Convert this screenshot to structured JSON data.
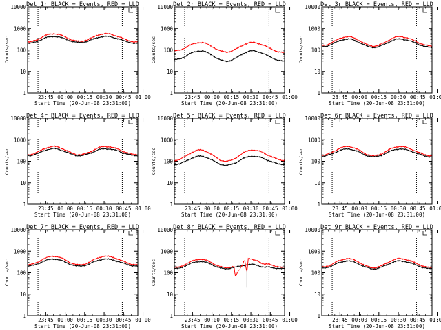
{
  "chart_data": [
    {
      "type": "line",
      "panel": 1,
      "title": "Det 1r BLACK = Events, RED = LLD",
      "xlabel": "Start Time (20-Jun-08 23:31:00)",
      "ylabel": "Counts/sec",
      "ylim": [
        1,
        10000
      ],
      "yscale": "log",
      "yticks": [
        "1",
        "10",
        "100",
        "1000",
        "10000"
      ],
      "xticks": [
        "23:45",
        "00:00",
        "00:15",
        "00:30",
        "00:45",
        "01:00"
      ],
      "vlines": [
        "23:39",
        "00:44"
      ],
      "series": [
        {
          "color": "#000000",
          "keys": [
            [
              0,
              200
            ],
            [
              20,
              420
            ],
            [
              40,
              220
            ],
            [
              60,
              420
            ],
            [
              85,
              200
            ]
          ]
        },
        {
          "color": "#ff0000",
          "keys": [
            [
              0,
              230
            ],
            [
              20,
              560
            ],
            [
              40,
              250
            ],
            [
              60,
              560
            ],
            [
              85,
              230
            ]
          ]
        }
      ]
    },
    {
      "type": "line",
      "panel": 2,
      "title": "Det 2r BLACK = Events, RED = LLD",
      "xlabel": "Start Time (20-Jun-08 23:31:00)",
      "ylabel": "Counts/sec",
      "ylim": [
        1,
        10000
      ],
      "yscale": "log",
      "yticks": [
        "1",
        "10",
        "100",
        "1000",
        "10000"
      ],
      "xticks": [
        "23:45",
        "00:00",
        "00:15",
        "00:30",
        "00:45",
        "01:00"
      ],
      "vlines": [
        "23:39",
        "00:44"
      ],
      "series": [
        {
          "color": "#000000",
          "keys": [
            [
              0,
              35
            ],
            [
              20,
              90
            ],
            [
              40,
              30
            ],
            [
              60,
              90
            ],
            [
              85,
              30
            ]
          ]
        },
        {
          "color": "#ff0000",
          "keys": [
            [
              0,
              90
            ],
            [
              20,
              220
            ],
            [
              40,
              80
            ],
            [
              60,
              220
            ],
            [
              85,
              75
            ]
          ]
        }
      ]
    },
    {
      "type": "line",
      "panel": 3,
      "title": "Det 3r BLACK = Events, RED = LLD",
      "xlabel": "Start Time (20-Jun-08 23:31:00)",
      "ylabel": "Counts/sec",
      "ylim": [
        1,
        10000
      ],
      "yscale": "log",
      "yticks": [
        "1",
        "10",
        "100",
        "1000",
        "10000"
      ],
      "xticks": [
        "23:45",
        "00:00",
        "00:15",
        "00:30",
        "00:45",
        "01:00"
      ],
      "vlines": [
        "23:39",
        "00:44"
      ],
      "series": [
        {
          "color": "#000000",
          "keys": [
            [
              0,
              140
            ],
            [
              20,
              320
            ],
            [
              40,
              130
            ],
            [
              60,
              320
            ],
            [
              85,
              130
            ]
          ]
        },
        {
          "color": "#ff0000",
          "keys": [
            [
              0,
              160
            ],
            [
              20,
              410
            ],
            [
              40,
              150
            ],
            [
              60,
              410
            ],
            [
              85,
              150
            ]
          ]
        }
      ]
    },
    {
      "type": "line",
      "panel": 4,
      "title": "Det 4r BLACK = Events, RED = LLD",
      "xlabel": "Start Time (20-Jun-08 23:31:00)",
      "ylabel": "Counts/sec",
      "ylim": [
        1,
        10000
      ],
      "yscale": "log",
      "yticks": [
        "1",
        "10",
        "100",
        "1000",
        "10000"
      ],
      "xticks": [
        "23:45",
        "00:00",
        "00:15",
        "00:30",
        "00:45",
        "01:00"
      ],
      "vlines": [
        "23:39",
        "00:44"
      ],
      "series": [
        {
          "color": "#000000",
          "keys": [
            [
              0,
              180
            ],
            [
              20,
              380
            ],
            [
              40,
              180
            ],
            [
              60,
              380
            ],
            [
              85,
              180
            ]
          ]
        },
        {
          "color": "#ff0000",
          "keys": [
            [
              0,
              200
            ],
            [
              20,
              480
            ],
            [
              40,
              200
            ],
            [
              60,
              480
            ],
            [
              85,
              200
            ]
          ]
        }
      ]
    },
    {
      "type": "line",
      "panel": 5,
      "title": "Det 5r BLACK = Events, RED = LLD",
      "xlabel": "Start Time (20-Jun-08 23:31:00)",
      "ylabel": "Counts/sec",
      "ylim": [
        1,
        10000
      ],
      "yscale": "log",
      "yticks": [
        "1",
        "10",
        "100",
        "1000",
        "10000"
      ],
      "xticks": [
        "23:45",
        "00:00",
        "00:15",
        "00:30",
        "00:45",
        "01:00"
      ],
      "vlines": [
        "23:39",
        "00:44"
      ],
      "series": [
        {
          "color": "#000000",
          "keys": [
            [
              0,
              70
            ],
            [
              20,
              170
            ],
            [
              40,
              65
            ],
            [
              60,
              170
            ],
            [
              85,
              70
            ]
          ]
        },
        {
          "color": "#ff0000",
          "keys": [
            [
              0,
              110
            ],
            [
              20,
              330
            ],
            [
              40,
              100
            ],
            [
              60,
              330
            ],
            [
              85,
              110
            ]
          ]
        }
      ]
    },
    {
      "type": "line",
      "panel": 6,
      "title": "Det 6r BLACK = Events, RED = LLD",
      "xlabel": "Start Time (20-Jun-08 23:31:00)",
      "ylabel": "Counts/sec",
      "ylim": [
        1,
        10000
      ],
      "yscale": "log",
      "yticks": [
        "1",
        "10",
        "100",
        "1000",
        "10000"
      ],
      "xticks": [
        "23:45",
        "00:00",
        "00:15",
        "00:30",
        "00:45",
        "01:00"
      ],
      "vlines": [
        "23:39",
        "00:44"
      ],
      "series": [
        {
          "color": "#000000",
          "keys": [
            [
              0,
              170
            ],
            [
              20,
              370
            ],
            [
              40,
              160
            ],
            [
              60,
              370
            ],
            [
              85,
              160
            ]
          ]
        },
        {
          "color": "#ff0000",
          "keys": [
            [
              0,
              190
            ],
            [
              20,
              480
            ],
            [
              40,
              180
            ],
            [
              60,
              480
            ],
            [
              85,
              180
            ]
          ]
        }
      ]
    },
    {
      "type": "line",
      "panel": 7,
      "title": "Det 7r BLACK = Events, RED = LLD",
      "xlabel": "Start Time (20-Jun-08 23:31:00)",
      "ylabel": "Counts/sec",
      "ylim": [
        1,
        10000
      ],
      "yscale": "log",
      "yticks": [
        "1",
        "10",
        "100",
        "1000",
        "10000"
      ],
      "xticks": [
        "23:45",
        "00:00",
        "00:15",
        "00:30",
        "00:45",
        "01:00"
      ],
      "vlines": [
        "23:39",
        "00:44"
      ],
      "series": [
        {
          "color": "#000000",
          "keys": [
            [
              0,
              200
            ],
            [
              20,
              430
            ],
            [
              40,
              200
            ],
            [
              60,
              430
            ],
            [
              85,
              200
            ]
          ]
        },
        {
          "color": "#ff0000",
          "keys": [
            [
              0,
              230
            ],
            [
              20,
              580
            ],
            [
              40,
              230
            ],
            [
              60,
              580
            ],
            [
              85,
              230
            ]
          ]
        }
      ]
    },
    {
      "type": "line",
      "panel": 8,
      "title": "Det 8r BLACK = Events, RED = LLD",
      "xlabel": "Start Time (20-Jun-08 23:31:00)",
      "ylabel": "Counts/sec",
      "ylim": [
        1,
        10000
      ],
      "yscale": "log",
      "yticks": [
        "1",
        "10",
        "100",
        "1000",
        "10000"
      ],
      "xticks": [
        "23:45",
        "00:00",
        "00:15",
        "00:30",
        "00:45",
        "01:00"
      ],
      "vlines": [
        "23:39",
        "00:44"
      ],
      "series": [
        {
          "color": "#000000",
          "keys": [
            [
              0,
              150
            ],
            [
              20,
              330
            ],
            [
              40,
              150
            ],
            [
              47,
              180
            ],
            [
              53,
              210
            ],
            [
              55,
              230
            ],
            [
              60,
              240
            ],
            [
              70,
              180
            ],
            [
              85,
              150
            ]
          ]
        },
        {
          "color": "#ff0000",
          "keys": [
            [
              0,
              170
            ],
            [
              20,
              420
            ],
            [
              40,
              170
            ],
            [
              46,
              190
            ],
            [
              47,
              70
            ],
            [
              50,
              130
            ],
            [
              52,
              200
            ],
            [
              54,
              380
            ],
            [
              56,
              120
            ],
            [
              57,
              450
            ],
            [
              62,
              380
            ],
            [
              70,
              250
            ],
            [
              85,
              170
            ]
          ]
        }
      ],
      "spike": {
        "minute": 56,
        "low": 20,
        "high": 260
      }
    },
    {
      "type": "line",
      "panel": 9,
      "title": "Det 9r BLACK = Events, RED = LLD",
      "xlabel": "Start Time (20-Jun-08 23:31:00)",
      "ylabel": "Counts/sec",
      "ylim": [
        1,
        10000
      ],
      "yscale": "log",
      "yticks": [
        "1",
        "10",
        "100",
        "1000",
        "10000"
      ],
      "xticks": [
        "23:45",
        "00:00",
        "00:15",
        "00:30",
        "00:45",
        "01:00"
      ],
      "vlines": [
        "23:39",
        "00:44"
      ],
      "series": [
        {
          "color": "#000000",
          "keys": [
            [
              0,
              160
            ],
            [
              20,
              350
            ],
            [
              40,
              150
            ],
            [
              60,
              350
            ],
            [
              85,
              150
            ]
          ]
        },
        {
          "color": "#ff0000",
          "keys": [
            [
              0,
              180
            ],
            [
              20,
              450
            ],
            [
              40,
              170
            ],
            [
              60,
              450
            ],
            [
              85,
              170
            ]
          ]
        }
      ]
    }
  ]
}
